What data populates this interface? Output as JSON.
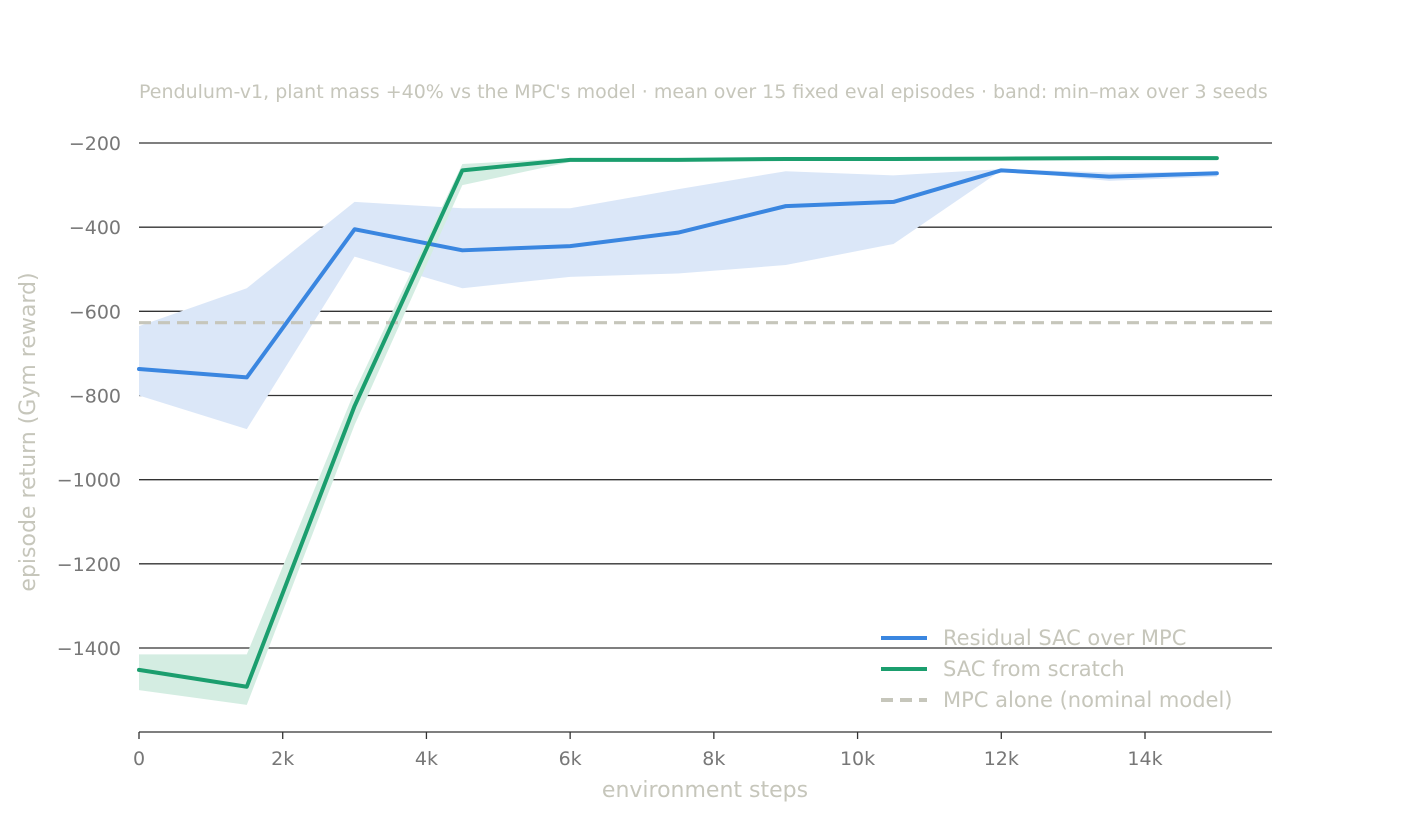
{
  "chart_data": {
    "type": "line",
    "subtitle": "Pendulum-v1, plant mass +40% vs the MPC's model · mean over 15 fixed eval episodes · band: min–max over 3 seeds",
    "xlabel": "environment steps",
    "ylabel": "episode return (Gym reward)",
    "xlim": [
      0,
      15700
    ],
    "ylim": [
      -1600,
      -170
    ],
    "x_ticks": [
      {
        "value": 0,
        "label": "0"
      },
      {
        "value": 2000,
        "label": "2k"
      },
      {
        "value": 4000,
        "label": "4k"
      },
      {
        "value": 6000,
        "label": "6k"
      },
      {
        "value": 8000,
        "label": "8k"
      },
      {
        "value": 10000,
        "label": "10k"
      },
      {
        "value": 12000,
        "label": "12k"
      },
      {
        "value": 14000,
        "label": "14k"
      }
    ],
    "y_ticks": [
      {
        "value": -200,
        "label": "−200"
      },
      {
        "value": -400,
        "label": "−400"
      },
      {
        "value": -600,
        "label": "−600"
      },
      {
        "value": -800,
        "label": "−800"
      },
      {
        "value": -1000,
        "label": "−1000"
      },
      {
        "value": -1200,
        "label": "−1200"
      },
      {
        "value": -1400,
        "label": "−1400"
      }
    ],
    "grid": "horizontal",
    "legend_position": "bottom-right",
    "x": [
      0,
      1500,
      3000,
      4500,
      6000,
      7500,
      9000,
      10500,
      12000,
      13500,
      15000
    ],
    "series": [
      {
        "name": "Residual SAC over MPC",
        "color": "#3a86e0",
        "band_color": "#dbe7f8",
        "mean": [
          -737,
          -757,
          -405,
          -455,
          -445,
          -413,
          -350,
          -340,
          -265,
          -280,
          -272
        ],
        "band_low": [
          -800,
          -880,
          -470,
          -545,
          -518,
          -510,
          -490,
          -440,
          -265,
          -290,
          -280
        ],
        "band_high": [
          -635,
          -545,
          -340,
          -355,
          -355,
          -310,
          -267,
          -277,
          -262,
          -270,
          -268
        ]
      },
      {
        "name": "SAC from scratch",
        "color": "#1b9e6e",
        "band_color": "#d4ede2",
        "mean": [
          -1452,
          -1492,
          -825,
          -265,
          -240,
          -240,
          -238,
          -238,
          -237,
          -236,
          -236
        ],
        "band_low": [
          -1500,
          -1535,
          -870,
          -300,
          -245,
          -243,
          -240,
          -240,
          -239,
          -238,
          -238
        ],
        "band_high": [
          -1415,
          -1415,
          -790,
          -250,
          -236,
          -237,
          -236,
          -236,
          -235,
          -234,
          -234
        ]
      }
    ],
    "reference_lines": [
      {
        "name": "MPC alone (nominal model)",
        "value": -627,
        "color": "#c6c6bb",
        "style": "dashed"
      }
    ]
  }
}
